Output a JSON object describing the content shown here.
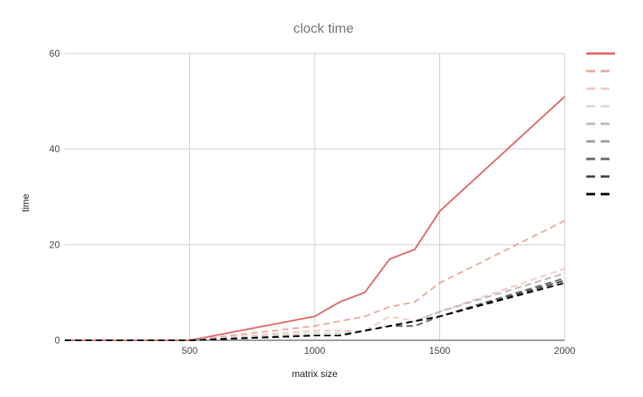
{
  "chart_data": {
    "type": "line",
    "title": "clock time",
    "xlabel": "matrix size",
    "ylabel": "time",
    "xlim": [
      0,
      2000
    ],
    "ylim": [
      0,
      60
    ],
    "xticks": [
      500,
      1000,
      1500,
      2000
    ],
    "yticks": [
      0,
      20,
      40,
      60
    ],
    "grid": true,
    "legend": "right",
    "series": [
      {
        "color": "#e06666",
        "dash": "solid",
        "x": [
          0,
          500,
          1000,
          1100,
          1200,
          1300,
          1400,
          1500,
          2000
        ],
        "y": [
          0,
          0,
          5,
          8,
          10,
          17,
          19,
          27,
          51
        ]
      },
      {
        "color": "#eaa99e",
        "dash": "dashed",
        "x": [
          0,
          500,
          1000,
          1100,
          1200,
          1300,
          1400,
          1500,
          2000
        ],
        "y": [
          0,
          0,
          3,
          4,
          5,
          7,
          8,
          12,
          25
        ]
      },
      {
        "color": "#f4c7c3",
        "dash": "dashed",
        "x": [
          0,
          500,
          1000,
          1100,
          1200,
          1300,
          1400,
          1500,
          2000
        ],
        "y": [
          0,
          0,
          2,
          2,
          2,
          5,
          4,
          6,
          15
        ]
      },
      {
        "color": "#d9d9d9",
        "dash": "dashed",
        "x": [
          0,
          500,
          1000,
          1100,
          1200,
          1300,
          1400,
          1500,
          2000
        ],
        "y": [
          0,
          0,
          1.5,
          1.5,
          2,
          3,
          4,
          6,
          14
        ]
      },
      {
        "color": "#b7b7b7",
        "dash": "dashed",
        "x": [
          0,
          500,
          1000,
          1100,
          1200,
          1300,
          1400,
          1500,
          2000
        ],
        "y": [
          0,
          0,
          1,
          1,
          2,
          3,
          4,
          6,
          14
        ]
      },
      {
        "color": "#999999",
        "dash": "dashed",
        "x": [
          0,
          500,
          1000,
          1100,
          1200,
          1300,
          1400,
          1500,
          2000
        ],
        "y": [
          0,
          0,
          1,
          1,
          2,
          3,
          3,
          5,
          13
        ]
      },
      {
        "color": "#666666",
        "dash": "dashed",
        "x": [
          0,
          500,
          1000,
          1100,
          1200,
          1300,
          1400,
          1500,
          2000
        ],
        "y": [
          0,
          0,
          1,
          1,
          2,
          3,
          3,
          5,
          13
        ]
      },
      {
        "color": "#434343",
        "dash": "dashed",
        "x": [
          0,
          500,
          1000,
          1100,
          1200,
          1300,
          1400,
          1500,
          2000
        ],
        "y": [
          0,
          0,
          1,
          1,
          2,
          3,
          4,
          5,
          12.5
        ]
      },
      {
        "color": "#000000",
        "dash": "dashed",
        "x": [
          0,
          500,
          1000,
          1100,
          1200,
          1300,
          1400,
          1500,
          2000
        ],
        "y": [
          0,
          0,
          1,
          1,
          2,
          3,
          4,
          5,
          12
        ]
      }
    ]
  }
}
